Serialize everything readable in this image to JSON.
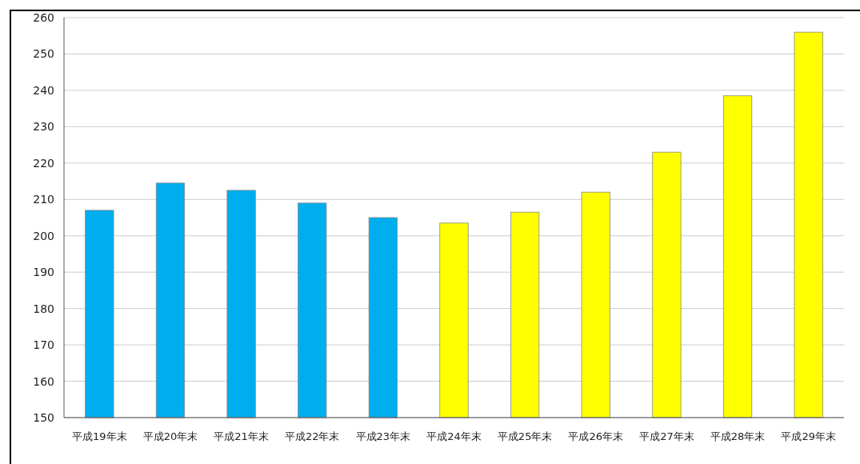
{
  "chart_data": {
    "type": "bar",
    "categories": [
      "平成19年末",
      "平成20年末",
      "平成21年末",
      "平成22年末",
      "平成23年末",
      "平成24年末",
      "平成25年末",
      "平成26年末",
      "平成27年末",
      "平成28年末",
      "平成29年末"
    ],
    "values": [
      207,
      214.5,
      212.5,
      209,
      205,
      203.5,
      206.5,
      212,
      223,
      238.5,
      256
    ],
    "colors": [
      "#00aeef",
      "#00aeef",
      "#00aeef",
      "#00aeef",
      "#00aeef",
      "#ffff00",
      "#ffff00",
      "#ffff00",
      "#ffff00",
      "#ffff00",
      "#ffff00"
    ],
    "ylim": [
      150,
      260
    ],
    "yticks": [
      150,
      160,
      170,
      180,
      190,
      200,
      210,
      220,
      230,
      240,
      250,
      260
    ],
    "grid": "y"
  }
}
